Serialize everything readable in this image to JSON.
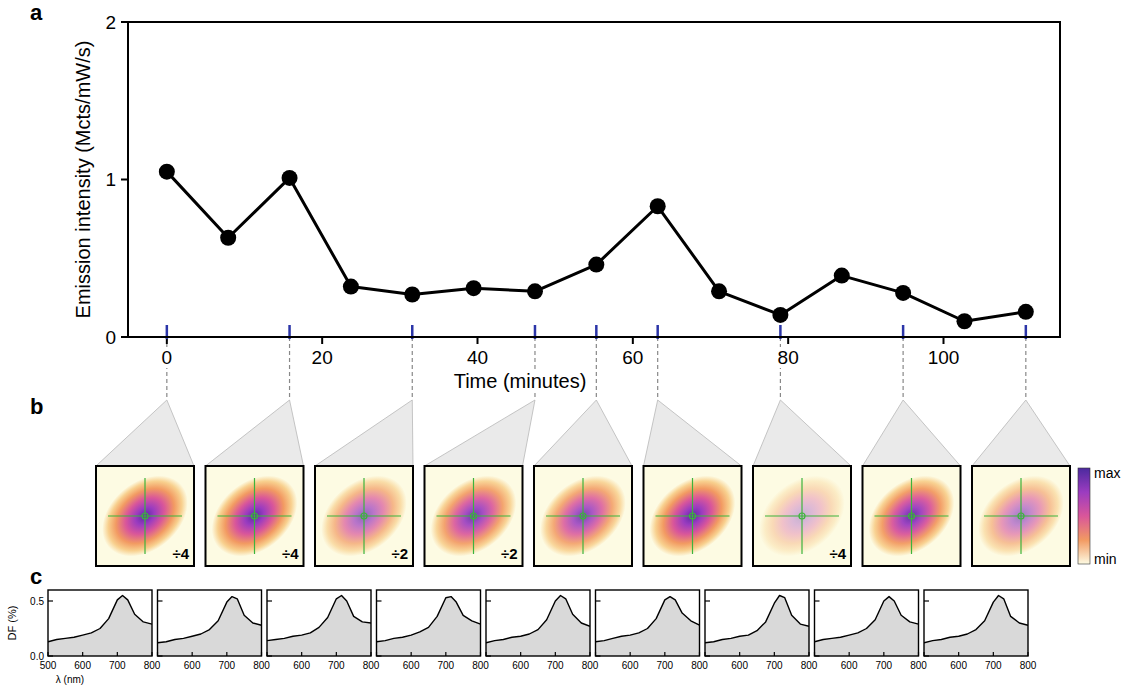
{
  "chart_data": [
    {
      "label": "a",
      "type": "line",
      "x": [
        0,
        7.9,
        15.8,
        23.7,
        31.6,
        39.5,
        47.4,
        55.3,
        63.2,
        71.1,
        79,
        86.9,
        94.8,
        102.7,
        110.6
      ],
      "values": [
        1.05,
        0.63,
        1.01,
        0.32,
        0.27,
        0.31,
        0.29,
        0.46,
        0.83,
        0.29,
        0.14,
        0.39,
        0.28,
        0.1,
        0.16
      ],
      "xlabel": "Time (minutes)",
      "ylabel": "Emission intensity (Mcts/mW/s)",
      "xlim": [
        -5,
        115
      ],
      "xticks": [
        0,
        20,
        40,
        60,
        80,
        100
      ],
      "ylim": [
        0,
        2
      ],
      "yticks": [
        0,
        1,
        2
      ],
      "color": "#000000",
      "marker": "circle"
    },
    {
      "label": "b",
      "type": "image",
      "images": [
        {
          "time": 0,
          "scale_label": "÷4"
        },
        {
          "time": 15.8,
          "scale_label": "÷4"
        },
        {
          "time": 31.6,
          "scale_label": "÷2"
        },
        {
          "time": 47.4,
          "scale_label": "÷2"
        },
        {
          "time": 55.3
        },
        {
          "time": 63.2
        },
        {
          "time": 79,
          "scale_label": "÷4"
        },
        {
          "time": 94.8
        },
        {
          "time": 110.6
        }
      ],
      "colorbar_labels": [
        "max",
        "min"
      ]
    },
    {
      "label": "c",
      "type": "area",
      "x": [
        500,
        525,
        550,
        575,
        600,
        625,
        650,
        675,
        700,
        715,
        730,
        750,
        775,
        800
      ],
      "series": [
        {
          "values": [
            0.13,
            0.15,
            0.16,
            0.17,
            0.19,
            0.21,
            0.25,
            0.34,
            0.51,
            0.55,
            0.51,
            0.38,
            0.31,
            0.29
          ]
        },
        {
          "values": [
            0.12,
            0.13,
            0.15,
            0.16,
            0.18,
            0.2,
            0.24,
            0.32,
            0.49,
            0.54,
            0.52,
            0.37,
            0.3,
            0.28
          ]
        },
        {
          "values": [
            0.14,
            0.15,
            0.16,
            0.18,
            0.19,
            0.21,
            0.26,
            0.35,
            0.52,
            0.55,
            0.5,
            0.36,
            0.31,
            0.3
          ]
        },
        {
          "values": [
            0.13,
            0.14,
            0.16,
            0.17,
            0.19,
            0.22,
            0.26,
            0.36,
            0.53,
            0.54,
            0.49,
            0.37,
            0.32,
            0.29
          ]
        },
        {
          "values": [
            0.12,
            0.14,
            0.15,
            0.17,
            0.18,
            0.2,
            0.24,
            0.33,
            0.5,
            0.55,
            0.52,
            0.38,
            0.3,
            0.27
          ]
        },
        {
          "values": [
            0.13,
            0.14,
            0.16,
            0.18,
            0.19,
            0.21,
            0.25,
            0.34,
            0.51,
            0.54,
            0.51,
            0.39,
            0.32,
            0.28
          ]
        },
        {
          "values": [
            0.12,
            0.13,
            0.15,
            0.16,
            0.18,
            0.19,
            0.23,
            0.31,
            0.48,
            0.55,
            0.53,
            0.37,
            0.29,
            0.27
          ]
        },
        {
          "values": [
            0.13,
            0.15,
            0.16,
            0.17,
            0.19,
            0.21,
            0.25,
            0.33,
            0.5,
            0.54,
            0.5,
            0.37,
            0.31,
            0.29
          ]
        },
        {
          "values": [
            0.12,
            0.14,
            0.15,
            0.17,
            0.18,
            0.2,
            0.24,
            0.32,
            0.49,
            0.55,
            0.52,
            0.36,
            0.3,
            0.28
          ]
        }
      ],
      "xlabel": "λ (nm)",
      "ylabel": "DF (%)",
      "xlim": [
        500,
        800
      ],
      "xticks": [
        500,
        600,
        700,
        800
      ],
      "ylim": [
        0,
        0.6
      ],
      "yticks": [
        {
          "value": 0,
          "label": "0.0"
        },
        {
          "value": 0.5,
          "label": "0.5"
        }
      ],
      "color": "#d9d9d9"
    }
  ]
}
